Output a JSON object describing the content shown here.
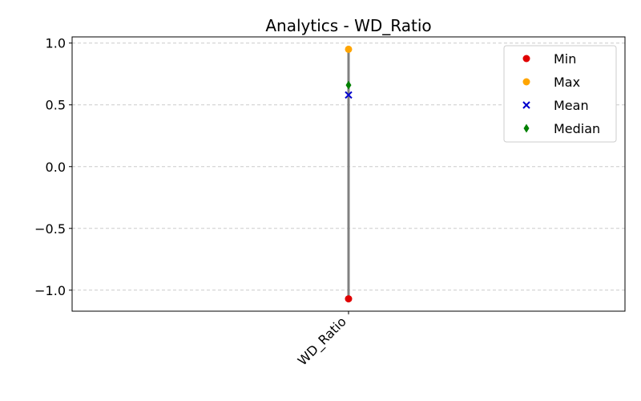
{
  "chart_data": {
    "type": "scatter",
    "title": "Analytics - WD_Ratio",
    "xlabel": "",
    "ylabel": "",
    "categories": [
      "WD_Ratio"
    ],
    "ylim": [
      -1.17,
      1.05
    ],
    "yticks": [
      1.0,
      0.5,
      0.0,
      -0.5,
      -1.0
    ],
    "ytick_labels": [
      "1.0",
      "0.5",
      "0.0",
      "−0.5",
      "−1.0"
    ],
    "grid": "y-dashed",
    "legend_position": "top-right",
    "range_line": {
      "from": -1.07,
      "to": 0.95,
      "color": "#808080"
    },
    "series": [
      {
        "name": "Min",
        "marker": "circle",
        "color": "#e00000",
        "values": [
          -1.07
        ]
      },
      {
        "name": "Max",
        "marker": "circle",
        "color": "#ffa500",
        "values": [
          0.95
        ]
      },
      {
        "name": "Mean",
        "marker": "x",
        "color": "#0000cc",
        "values": [
          0.58
        ]
      },
      {
        "name": "Median",
        "marker": "diamond",
        "color": "#008000",
        "values": [
          0.66
        ]
      }
    ]
  }
}
